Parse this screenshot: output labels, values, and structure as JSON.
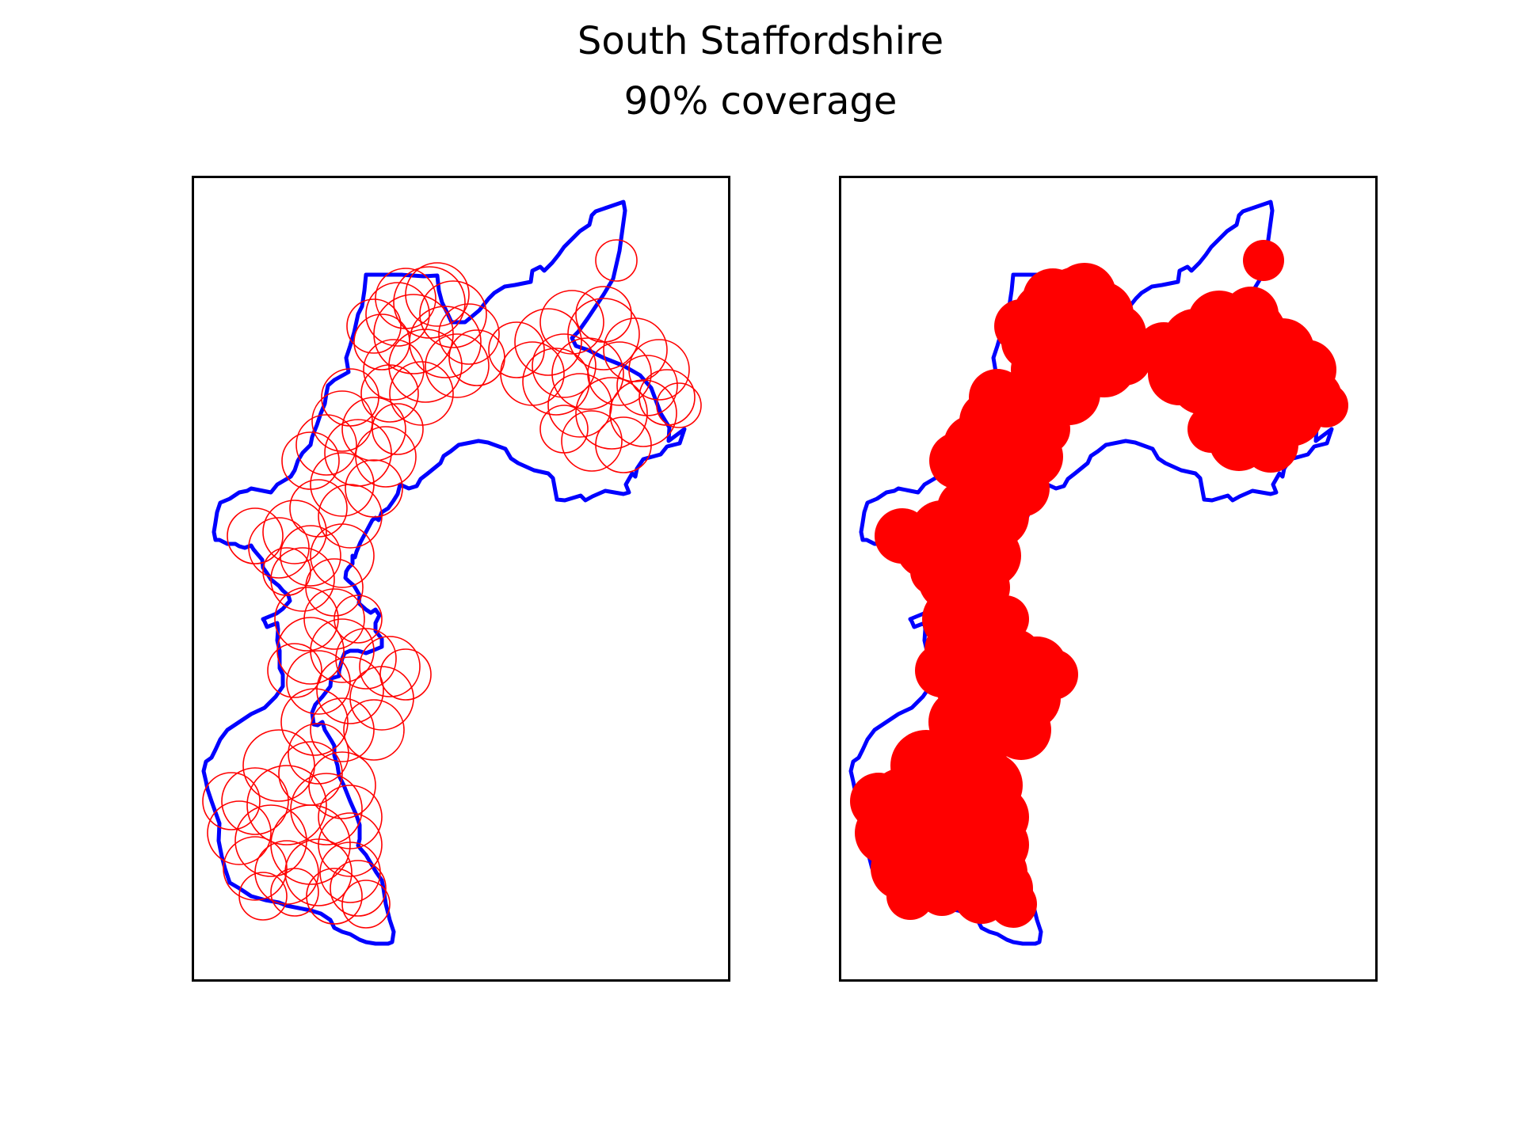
{
  "figure": {
    "title_line_1": "South Staffordshire",
    "title_line_2": "90% coverage"
  },
  "colors": {
    "boundary": "#0000ff",
    "coverage": "#ff0000",
    "frame": "#000000",
    "background": "#ffffff"
  },
  "panels": [
    {
      "name": "coverage-circles-outline",
      "circle_style": "outline"
    },
    {
      "name": "coverage-circles-filled",
      "circle_style": "filled"
    }
  ]
}
